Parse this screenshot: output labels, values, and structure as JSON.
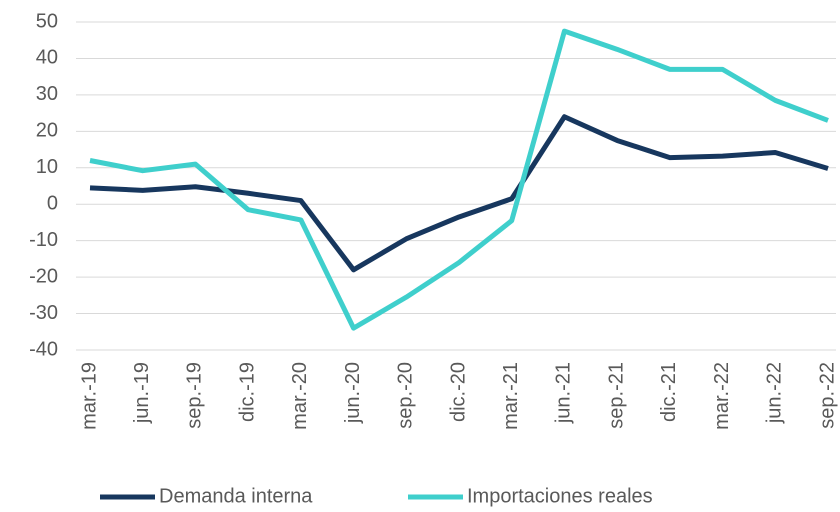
{
  "chart_data": {
    "type": "line",
    "categories": [
      "mar.-19",
      "jun.-19",
      "sep.-19",
      "dic.-19",
      "mar.-20",
      "jun.-20",
      "sep.-20",
      "dic.-20",
      "mar.-21",
      "jun.-21",
      "sep.-21",
      "dic.-21",
      "mar.-22",
      "jun.-22",
      "sep.-22"
    ],
    "series": [
      {
        "name": "Demanda interna",
        "color": "#17375e",
        "values": [
          4.5,
          3.8,
          4.8,
          3,
          1,
          -18,
          -9.5,
          -3.5,
          1.5,
          24,
          17.5,
          12.8,
          13.2,
          14.2,
          9.8
        ]
      },
      {
        "name": "Importaciones reales",
        "color": "#3fcfcc",
        "values": [
          12,
          9.2,
          11,
          -1.5,
          -4.3,
          -34,
          -25.5,
          -16,
          -4.5,
          47.5,
          42.5,
          37,
          37,
          28.5,
          23
        ]
      }
    ],
    "ylim": [
      -40,
      50
    ],
    "yticks": [
      -40,
      -30,
      -20,
      -10,
      0,
      10,
      20,
      30,
      40,
      50
    ],
    "grid": true,
    "legend": "bottom"
  }
}
